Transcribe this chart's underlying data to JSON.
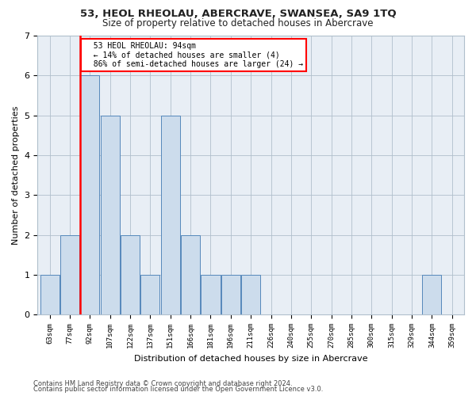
{
  "title1": "53, HEOL RHEOLAU, ABERCRAVE, SWANSEA, SA9 1TQ",
  "title2": "Size of property relative to detached houses in Abercrave",
  "xlabel": "Distribution of detached houses by size in Abercrave",
  "ylabel": "Number of detached properties",
  "footnote1": "Contains HM Land Registry data © Crown copyright and database right 2024.",
  "footnote2": "Contains public sector information licensed under the Open Government Licence v3.0.",
  "annotation_title": "53 HEOL RHEOLAU: 94sqm",
  "annotation_line2": "← 14% of detached houses are smaller (4)",
  "annotation_line3": "86% of semi-detached houses are larger (24) →",
  "bar_labels": [
    "63sqm",
    "77sqm",
    "92sqm",
    "107sqm",
    "122sqm",
    "137sqm",
    "151sqm",
    "166sqm",
    "181sqm",
    "196sqm",
    "211sqm",
    "226sqm",
    "240sqm",
    "255sqm",
    "270sqm",
    "285sqm",
    "300sqm",
    "315sqm",
    "329sqm",
    "344sqm",
    "359sqm"
  ],
  "bar_heights": [
    1,
    2,
    6,
    5,
    2,
    1,
    5,
    2,
    1,
    1,
    1,
    0,
    0,
    0,
    0,
    0,
    0,
    0,
    0,
    1,
    0
  ],
  "bar_color": "#ccdcec",
  "bar_edge_color": "#5588bb",
  "subject_bar_index": 2,
  "ylim": [
    0,
    7
  ],
  "yticks": [
    0,
    1,
    2,
    3,
    4,
    5,
    6,
    7
  ],
  "background_color": "#e8eef5",
  "grid_color": "#b0bfcc"
}
